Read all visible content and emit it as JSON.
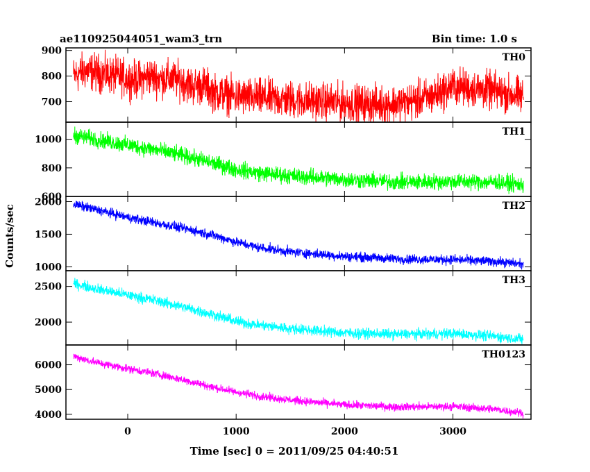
{
  "header": {
    "left_title": "ae110925044051_wam3_trn",
    "right_title": "Bin time: 1.0 s"
  },
  "chart_data": {
    "type": "line",
    "xlabel": "Time [sec] 0 = 2011/09/25 04:40:51",
    "ylabel": "Counts/sec",
    "xlim": [
      -570,
      3720
    ],
    "x_ticks": [
      0,
      1000,
      2000,
      3000
    ],
    "x_tick_labels": [
      "0",
      "1000",
      "2000",
      "3000"
    ],
    "x_range": [
      -500,
      3650
    ],
    "grid": false,
    "series": [
      {
        "name": "TH0",
        "color": "#ff0000",
        "ylim": [
          620,
          910
        ],
        "y_ticks": [
          700,
          800,
          900
        ],
        "y_tick_labels": [
          "700",
          "800",
          "900"
        ],
        "x": [
          -500,
          -400,
          -300,
          -200,
          -100,
          0,
          100,
          200,
          300,
          400,
          500,
          600,
          700,
          800,
          900,
          1000,
          1200,
          1400,
          1600,
          1800,
          2000,
          2200,
          2400,
          2600,
          2800,
          3000,
          3200,
          3400,
          3650
        ],
        "y": [
          800,
          820,
          815,
          805,
          800,
          790,
          785,
          800,
          790,
          790,
          780,
          760,
          765,
          735,
          730,
          720,
          715,
          710,
          705,
          700,
          695,
          690,
          690,
          700,
          720,
          760,
          750,
          740,
          720
        ],
        "noise": 45
      },
      {
        "name": "TH1",
        "color": "#00ff00",
        "ylim": [
          600,
          1120
        ],
        "y_ticks": [
          600,
          800,
          1000
        ],
        "y_tick_labels": [
          "600",
          "800",
          "1000"
        ],
        "x": [
          -500,
          -300,
          0,
          300,
          600,
          800,
          1000,
          1200,
          1500,
          2000,
          2500,
          3000,
          3400,
          3650
        ],
        "y": [
          1030,
          1000,
          960,
          920,
          870,
          830,
          790,
          765,
          745,
          720,
          700,
          705,
          700,
          680
        ],
        "noise": 35
      },
      {
        "name": "TH2",
        "color": "#0000ff",
        "ylim": [
          940,
          2080
        ],
        "y_ticks": [
          1000,
          1500,
          2000
        ],
        "y_tick_labels": [
          "1000",
          "1500",
          "2000"
        ],
        "x": [
          -500,
          -300,
          0,
          300,
          600,
          800,
          1000,
          1200,
          1500,
          2000,
          2500,
          3000,
          3400,
          3650
        ],
        "y": [
          1960,
          1880,
          1760,
          1660,
          1560,
          1480,
          1380,
          1300,
          1230,
          1160,
          1120,
          1110,
          1080,
          1040
        ],
        "noise": 45
      },
      {
        "name": "TH3",
        "color": "#00ffff",
        "ylim": [
          1680,
          2720
        ],
        "y_ticks": [
          2000,
          2500
        ],
        "y_tick_labels": [
          "2000",
          "2500"
        ],
        "x": [
          -500,
          -300,
          0,
          300,
          600,
          800,
          1000,
          1200,
          1500,
          2000,
          2500,
          3000,
          3400,
          3650
        ],
        "y": [
          2540,
          2470,
          2380,
          2290,
          2180,
          2100,
          2010,
          1960,
          1910,
          1850,
          1830,
          1840,
          1800,
          1760
        ],
        "noise": 45
      },
      {
        "name": "TH0123",
        "color": "#ff00ff",
        "ylim": [
          3800,
          6800
        ],
        "y_ticks": [
          4000,
          5000,
          6000
        ],
        "y_tick_labels": [
          "4000",
          "5000",
          "6000"
        ],
        "x": [
          -500,
          -300,
          0,
          300,
          600,
          800,
          1000,
          1200,
          1500,
          2000,
          2500,
          3000,
          3400,
          3650
        ],
        "y": [
          6350,
          6100,
          5850,
          5600,
          5300,
          5080,
          4900,
          4750,
          4580,
          4380,
          4300,
          4320,
          4200,
          4050
        ],
        "noise": 100
      }
    ]
  }
}
